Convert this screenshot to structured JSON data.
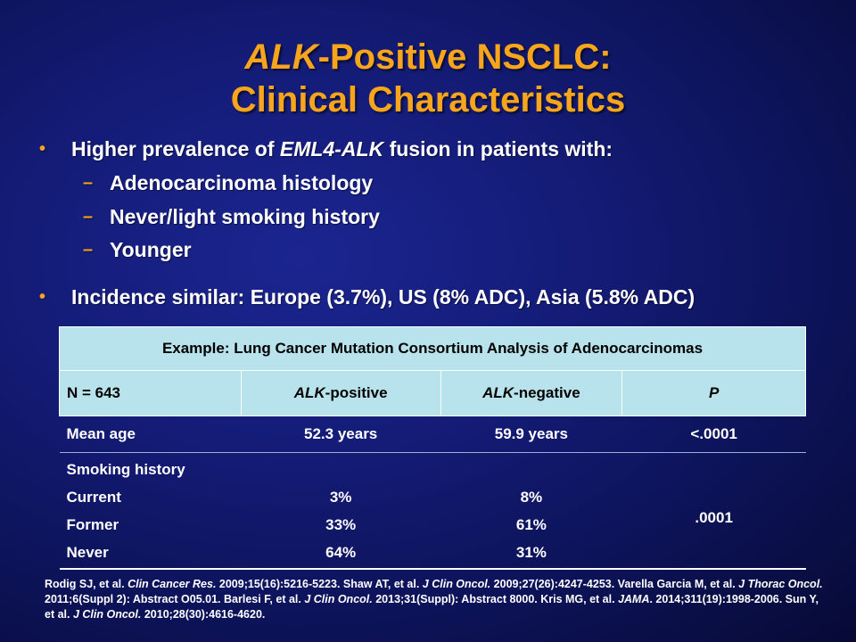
{
  "title": {
    "line1_italic": "ALK",
    "line1_rest": "-Positive NSCLC:",
    "line2": "Clinical Characteristics"
  },
  "bullets": {
    "b1_pre": "Higher prevalence of ",
    "b1_italic": "EML4-ALK",
    "b1_post": " fusion in patients with:",
    "sub1": "Adenocarcinoma histology",
    "sub2": "Never/light smoking history",
    "sub3": "Younger",
    "b2": "Incidence similar: Europe (3.7%), US (8% ADC), Asia (5.8% ADC)",
    "bullet_mark": "•",
    "dash_mark": "–"
  },
  "table": {
    "caption": "Example: Lung Cancer Mutation Consortium Analysis of Adenocarcinomas",
    "headers": {
      "c1": "N = 643",
      "c2_italic": "ALK",
      "c2_rest": "-positive",
      "c3_italic": "ALK",
      "c3_rest": "-negative",
      "c4": "P"
    },
    "age_row": {
      "label": "Mean age",
      "pos": "52.3 years",
      "neg": "59.9 years",
      "p": "<.0001"
    },
    "smoking": {
      "label": "Smoking history",
      "rows": [
        {
          "label": "Current",
          "pos": "3%",
          "neg": "8%"
        },
        {
          "label": "Former",
          "pos": "33%",
          "neg": "61%"
        },
        {
          "label": "Never",
          "pos": "64%",
          "neg": "31%"
        }
      ],
      "p": ".0001"
    }
  },
  "references": {
    "r1": "Rodig SJ, et al. ",
    "r1_j": "Clin Cancer Res.",
    "r1_c": " 2009;15(16):5216-5223. Shaw AT, et al. ",
    "r2_j": "J Clin Oncol.",
    "r2_c": " 2009;27(26):4247-4253. Varella Garcia M, et al. ",
    "r3_j": "J Thorac Oncol.",
    "r3_c": " 2011;6(Suppl 2): Abstract  O05.01. Barlesi F, et al. ",
    "r4_j": "J Clin Oncol.",
    "r4_c": " 2013;31(Suppl): Abstract 8000. Kris MG, et al. ",
    "r5_j": "JAMA",
    "r5_c": ". 2014;311(19):1998-2006. Sun Y, et al. ",
    "r6_j": "J Clin Oncol.",
    "r6_c": " 2010;28(30):4616-4620."
  },
  "colors": {
    "title": "#f7a51c",
    "bullet": "#f7a51c",
    "table_header_bg": "#b9e3ec",
    "background": "#141c78"
  }
}
